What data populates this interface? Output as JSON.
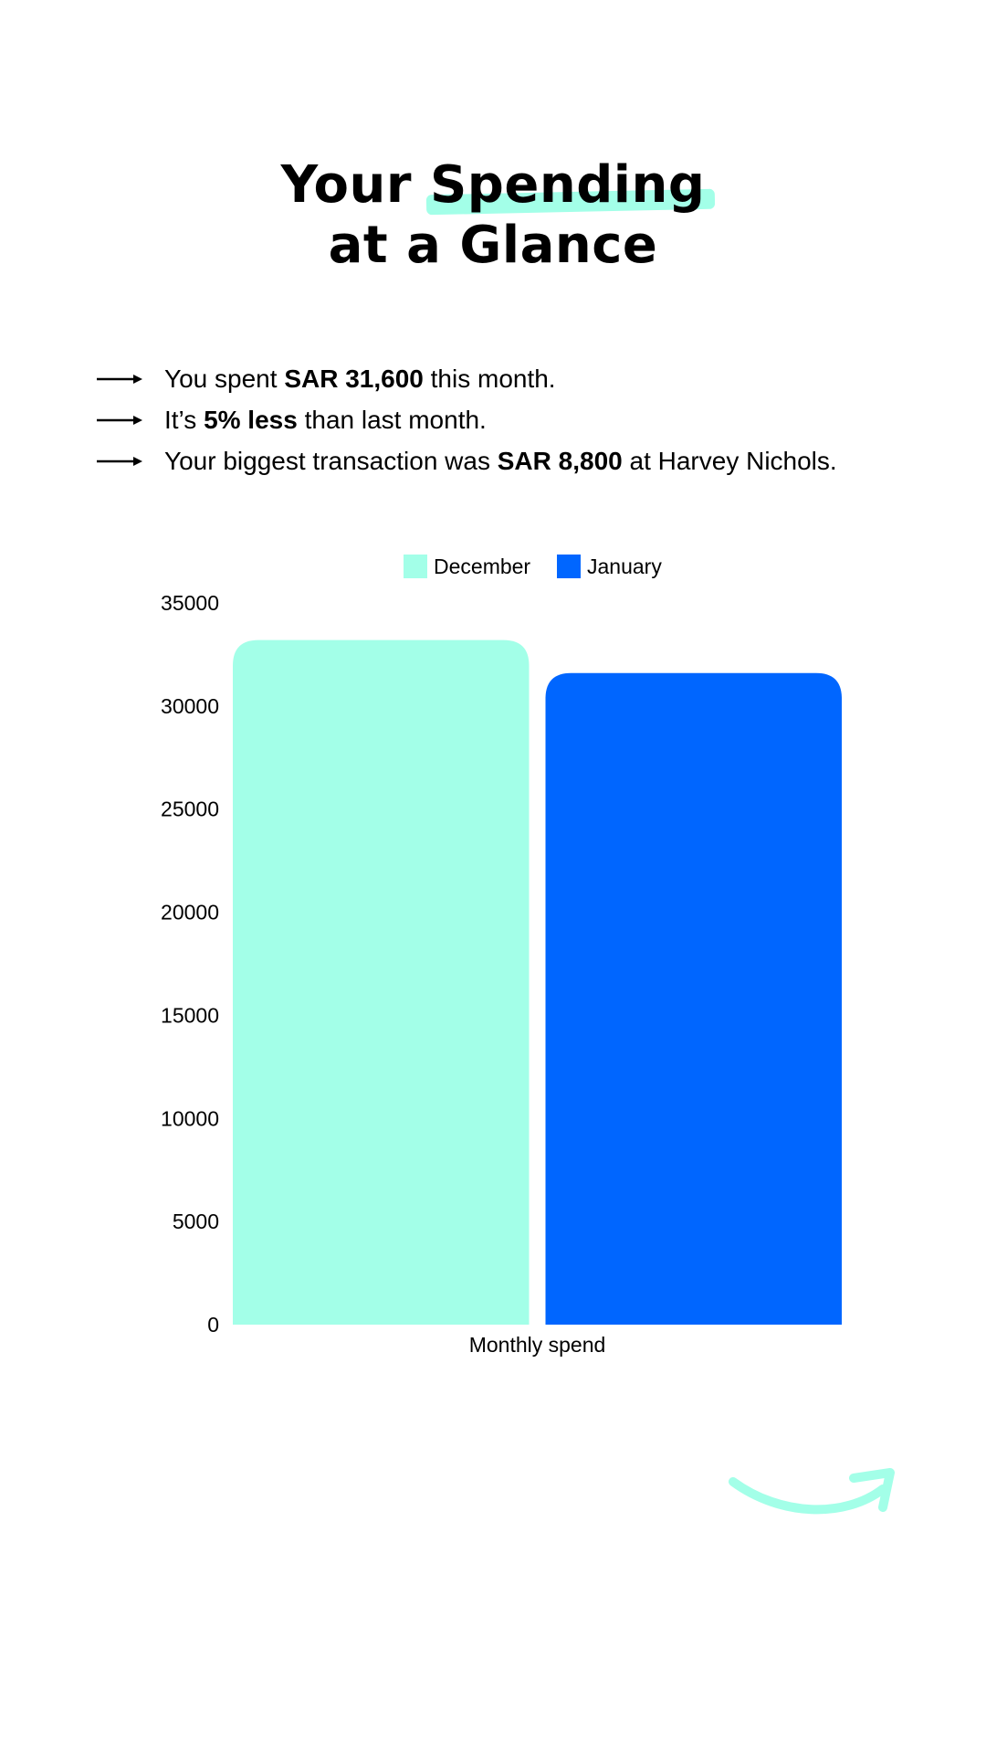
{
  "title": {
    "prefix": "Your ",
    "highlight": "Spending",
    "line2": "at a Glance"
  },
  "summary": [
    {
      "before": "You spent ",
      "bold": "SAR 31,600",
      "after": " this month."
    },
    {
      "before": "It’s ",
      "bold": "5% less",
      "after": " than last month."
    },
    {
      "before": "Your biggest transaction was ",
      "bold": "SAR 8,800",
      "after": " at Harvey Nichols."
    }
  ],
  "colors": {
    "december": "#a3ffe8",
    "january": "#0066ff",
    "accent": "#a3ffe8"
  },
  "icons": {
    "bullet": "right-arrow-icon",
    "decoration": "curved-arrow-icon"
  },
  "chart_data": {
    "type": "bar",
    "title": "",
    "categories": [
      "Monthly spend"
    ],
    "series": [
      {
        "name": "December",
        "values": [
          33200
        ]
      },
      {
        "name": "January",
        "values": [
          31600
        ]
      }
    ],
    "xlabel": "",
    "ylabel": "",
    "ylim": [
      0,
      35000
    ],
    "yticks": [
      0,
      5000,
      10000,
      15000,
      20000,
      25000,
      30000,
      35000
    ],
    "legend": "top-center",
    "grid": false
  }
}
